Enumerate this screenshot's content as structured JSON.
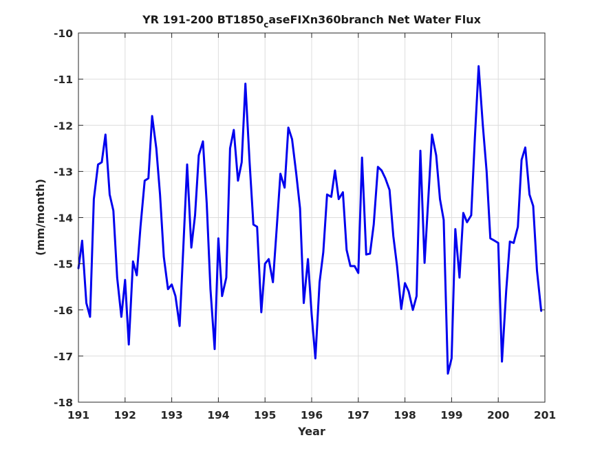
{
  "chart_data": {
    "type": "line",
    "title_main": "YR 191-200 BT1850",
    "title_sub": "c",
    "title_rest": "aseFIXn360branch Net Water Flux",
    "xlabel": "Year",
    "ylabel": "(mm/month)",
    "xlim": [
      191,
      201
    ],
    "ylim": [
      -18,
      -10
    ],
    "xticks": [
      "191",
      "192",
      "193",
      "194",
      "195",
      "196",
      "197",
      "198",
      "199",
      "200",
      "201"
    ],
    "yticks": [
      "-10",
      "-11",
      "-12",
      "-13",
      "-14",
      "-15",
      "-16",
      "-17",
      "-18"
    ],
    "grid": true,
    "line_color": "#0000ee",
    "series": [
      {
        "x": [
          191.0,
          191.08,
          191.17,
          191.25,
          191.33,
          191.42,
          191.5,
          191.58,
          191.67,
          191.75,
          191.83,
          191.92,
          192.0,
          192.08,
          192.17,
          192.25,
          192.33,
          192.42,
          192.5,
          192.58,
          192.67,
          192.75,
          192.83,
          192.92,
          193.0,
          193.08,
          193.17,
          193.25,
          193.33,
          193.42,
          193.5,
          193.58,
          193.67,
          193.75,
          193.83,
          193.92,
          194.0,
          194.08,
          194.17,
          194.25,
          194.33,
          194.42,
          194.5,
          194.58,
          194.67,
          194.75,
          194.83,
          194.92,
          195.0,
          195.08,
          195.17,
          195.25,
          195.33,
          195.42,
          195.5,
          195.58,
          195.67,
          195.75,
          195.83,
          195.92,
          196.0,
          196.08,
          196.17,
          196.25,
          196.33,
          196.42,
          196.5,
          196.58,
          196.67,
          196.75,
          196.83,
          196.92,
          197.0,
          197.08,
          197.17,
          197.25,
          197.33,
          197.42,
          197.5,
          197.58,
          197.67,
          197.75,
          197.83,
          197.92,
          198.0,
          198.08,
          198.17,
          198.25,
          198.33,
          198.42,
          198.5,
          198.58,
          198.67,
          198.75,
          198.83,
          198.92,
          199.0,
          199.08,
          199.17,
          199.25,
          199.33,
          199.42,
          199.5,
          199.58,
          199.67,
          199.75,
          199.83,
          199.92,
          200.0,
          200.08,
          200.17,
          200.25,
          200.33,
          200.42,
          200.5,
          200.58,
          200.67,
          200.75,
          200.83,
          200.92
        ],
        "y": [
          -15.1,
          -14.5,
          -15.85,
          -16.15,
          -13.6,
          -12.85,
          -12.8,
          -12.2,
          -13.5,
          -13.85,
          -15.3,
          -16.15,
          -15.35,
          -16.75,
          -14.95,
          -15.25,
          -14.2,
          -13.2,
          -13.15,
          -11.8,
          -12.5,
          -13.5,
          -14.85,
          -15.55,
          -15.45,
          -15.7,
          -16.35,
          -14.6,
          -12.85,
          -14.65,
          -13.95,
          -12.65,
          -12.35,
          -13.7,
          -15.55,
          -16.85,
          -14.45,
          -15.7,
          -15.3,
          -12.5,
          -12.1,
          -13.2,
          -12.8,
          -11.1,
          -12.8,
          -14.15,
          -14.2,
          -16.05,
          -15.0,
          -14.9,
          -15.4,
          -14.25,
          -13.05,
          -13.35,
          -12.05,
          -12.3,
          -13.05,
          -13.8,
          -15.85,
          -14.9,
          -16.1,
          -17.05,
          -15.4,
          -14.75,
          -13.5,
          -13.55,
          -12.98,
          -13.6,
          -13.45,
          -14.7,
          -15.05,
          -15.05,
          -15.2,
          -12.7,
          -14.8,
          -14.78,
          -14.15,
          -12.9,
          -12.98,
          -13.15,
          -13.4,
          -14.4,
          -15.05,
          -15.98,
          -15.42,
          -15.6,
          -16.0,
          -15.7,
          -12.55,
          -14.98,
          -13.6,
          -12.2,
          -12.65,
          -13.6,
          -14.05,
          -17.38,
          -17.05,
          -14.25,
          -15.3,
          -13.9,
          -14.1,
          -13.95,
          -12.25,
          -10.72,
          -12.0,
          -13.0,
          -14.45,
          -14.5,
          -14.55,
          -17.12,
          -15.6,
          -14.52,
          -14.55,
          -14.2,
          -12.75,
          -12.48,
          -13.5,
          -13.75,
          -15.15,
          -16.02
        ]
      }
    ]
  }
}
